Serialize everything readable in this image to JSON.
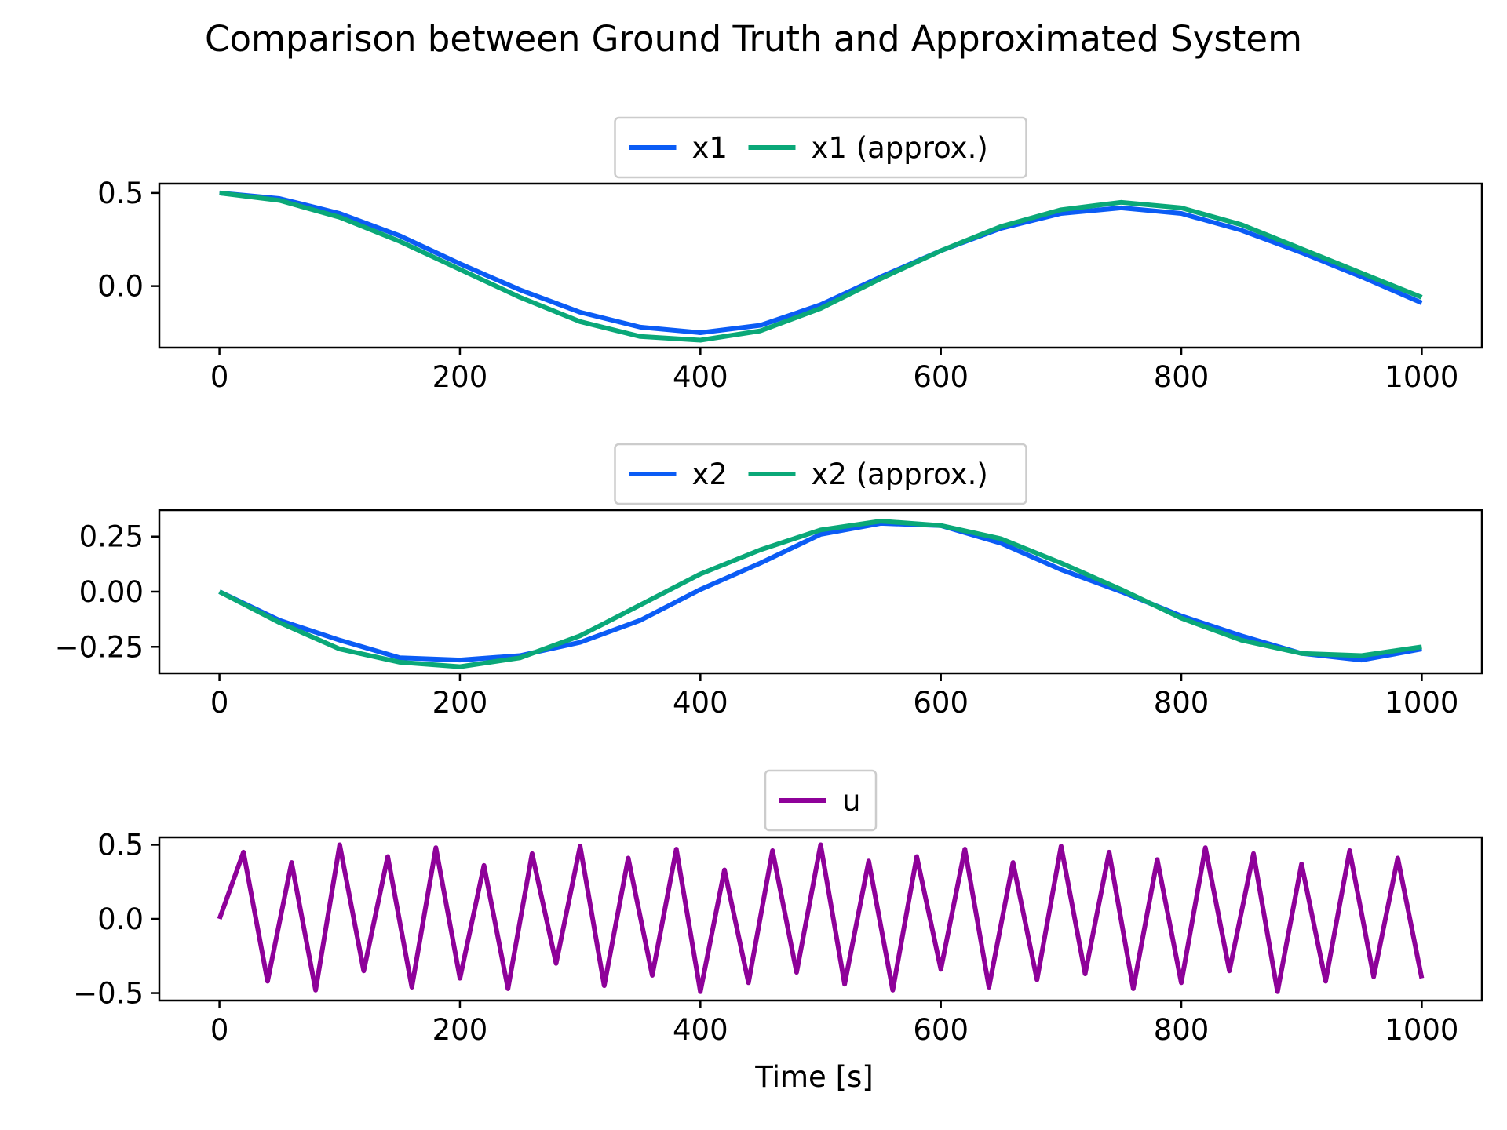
{
  "title": "Comparison between Ground Truth and Approximated System",
  "colors": {
    "ground_truth": "#0b5cf5",
    "approx": "#0aa878",
    "input": "#8e0199"
  },
  "chart_data": [
    {
      "type": "line",
      "xlim": [
        -50,
        1050
      ],
      "ylim": [
        -0.33,
        0.55
      ],
      "xticks": [
        0,
        200,
        400,
        600,
        800,
        1000
      ],
      "xtick_labels": [
        "0",
        "200",
        "400",
        "600",
        "800",
        "1000"
      ],
      "yticks": [
        0.5,
        0.0
      ],
      "ytick_labels": [
        "0.5",
        "0.0"
      ],
      "xlabel": "",
      "legend": {
        "placement": "top-center",
        "columns": 2
      },
      "series": [
        {
          "name": "x1",
          "color": "#0b5cf5",
          "x": [
            0,
            50,
            100,
            150,
            200,
            250,
            300,
            350,
            400,
            450,
            500,
            550,
            600,
            650,
            700,
            750,
            800,
            850,
            900,
            950,
            1000
          ],
          "values": [
            0.5,
            0.47,
            0.39,
            0.27,
            0.12,
            -0.02,
            -0.14,
            -0.22,
            -0.25,
            -0.21,
            -0.1,
            0.05,
            0.19,
            0.31,
            0.39,
            0.42,
            0.39,
            0.3,
            0.18,
            0.05,
            -0.09
          ]
        },
        {
          "name": "x1 (approx.)",
          "color": "#0aa878",
          "x": [
            0,
            50,
            100,
            150,
            200,
            250,
            300,
            350,
            400,
            450,
            500,
            550,
            600,
            650,
            700,
            750,
            800,
            850,
            900,
            950,
            1000
          ],
          "values": [
            0.5,
            0.46,
            0.37,
            0.24,
            0.09,
            -0.06,
            -0.19,
            -0.27,
            -0.29,
            -0.24,
            -0.12,
            0.04,
            0.19,
            0.32,
            0.41,
            0.45,
            0.42,
            0.33,
            0.2,
            0.07,
            -0.06
          ]
        }
      ]
    },
    {
      "type": "line",
      "xlim": [
        -50,
        1050
      ],
      "ylim": [
        -0.37,
        0.37
      ],
      "xticks": [
        0,
        200,
        400,
        600,
        800,
        1000
      ],
      "xtick_labels": [
        "0",
        "200",
        "400",
        "600",
        "800",
        "1000"
      ],
      "yticks": [
        0.25,
        0.0,
        -0.25
      ],
      "ytick_labels": [
        "0.25",
        "0.00",
        "−0.25"
      ],
      "xlabel": "",
      "legend": {
        "placement": "top-center",
        "columns": 2
      },
      "series": [
        {
          "name": "x2",
          "color": "#0b5cf5",
          "x": [
            0,
            50,
            100,
            150,
            200,
            250,
            300,
            350,
            400,
            450,
            500,
            550,
            600,
            650,
            700,
            750,
            800,
            850,
            900,
            950,
            1000
          ],
          "values": [
            0.0,
            -0.13,
            -0.22,
            -0.3,
            -0.31,
            -0.29,
            -0.23,
            -0.13,
            0.01,
            0.13,
            0.26,
            0.31,
            0.3,
            0.22,
            0.1,
            0.0,
            -0.11,
            -0.2,
            -0.28,
            -0.31,
            -0.26
          ]
        },
        {
          "name": "x2 (approx.)",
          "color": "#0aa878",
          "x": [
            0,
            50,
            100,
            150,
            200,
            250,
            300,
            350,
            400,
            450,
            500,
            550,
            600,
            650,
            700,
            750,
            800,
            850,
            900,
            950,
            1000
          ],
          "values": [
            0.0,
            -0.14,
            -0.26,
            -0.32,
            -0.34,
            -0.3,
            -0.2,
            -0.06,
            0.08,
            0.19,
            0.28,
            0.32,
            0.3,
            0.24,
            0.13,
            0.01,
            -0.12,
            -0.22,
            -0.28,
            -0.29,
            -0.25
          ]
        }
      ]
    },
    {
      "type": "line",
      "xlim": [
        -50,
        1050
      ],
      "ylim": [
        -0.55,
        0.55
      ],
      "xticks": [
        0,
        200,
        400,
        600,
        800,
        1000
      ],
      "xtick_labels": [
        "0",
        "200",
        "400",
        "600",
        "800",
        "1000"
      ],
      "yticks": [
        0.5,
        0.0,
        -0.5
      ],
      "ytick_labels": [
        "0.5",
        "0.0",
        "−0.5"
      ],
      "xlabel": "Time [s]",
      "legend": {
        "placement": "top-center",
        "columns": 1
      },
      "series": [
        {
          "name": "u",
          "color": "#8e0199",
          "x": [
            0,
            20,
            40,
            60,
            80,
            100,
            120,
            140,
            160,
            180,
            200,
            220,
            240,
            260,
            280,
            300,
            320,
            340,
            360,
            380,
            400,
            420,
            440,
            460,
            480,
            500,
            520,
            540,
            560,
            580,
            600,
            620,
            640,
            660,
            680,
            700,
            720,
            740,
            760,
            780,
            800,
            820,
            840,
            860,
            880,
            900,
            920,
            940,
            960,
            980,
            1000
          ],
          "values": [
            0.0,
            0.45,
            -0.42,
            0.38,
            -0.48,
            0.5,
            -0.35,
            0.42,
            -0.46,
            0.48,
            -0.4,
            0.36,
            -0.47,
            0.44,
            -0.3,
            0.49,
            -0.45,
            0.41,
            -0.38,
            0.47,
            -0.49,
            0.33,
            -0.43,
            0.46,
            -0.36,
            0.5,
            -0.44,
            0.39,
            -0.48,
            0.42,
            -0.34,
            0.47,
            -0.46,
            0.38,
            -0.41,
            0.49,
            -0.37,
            0.45,
            -0.47,
            0.4,
            -0.43,
            0.48,
            -0.35,
            0.44,
            -0.49,
            0.37,
            -0.42,
            0.46,
            -0.39,
            0.41,
            -0.4
          ]
        }
      ]
    }
  ]
}
